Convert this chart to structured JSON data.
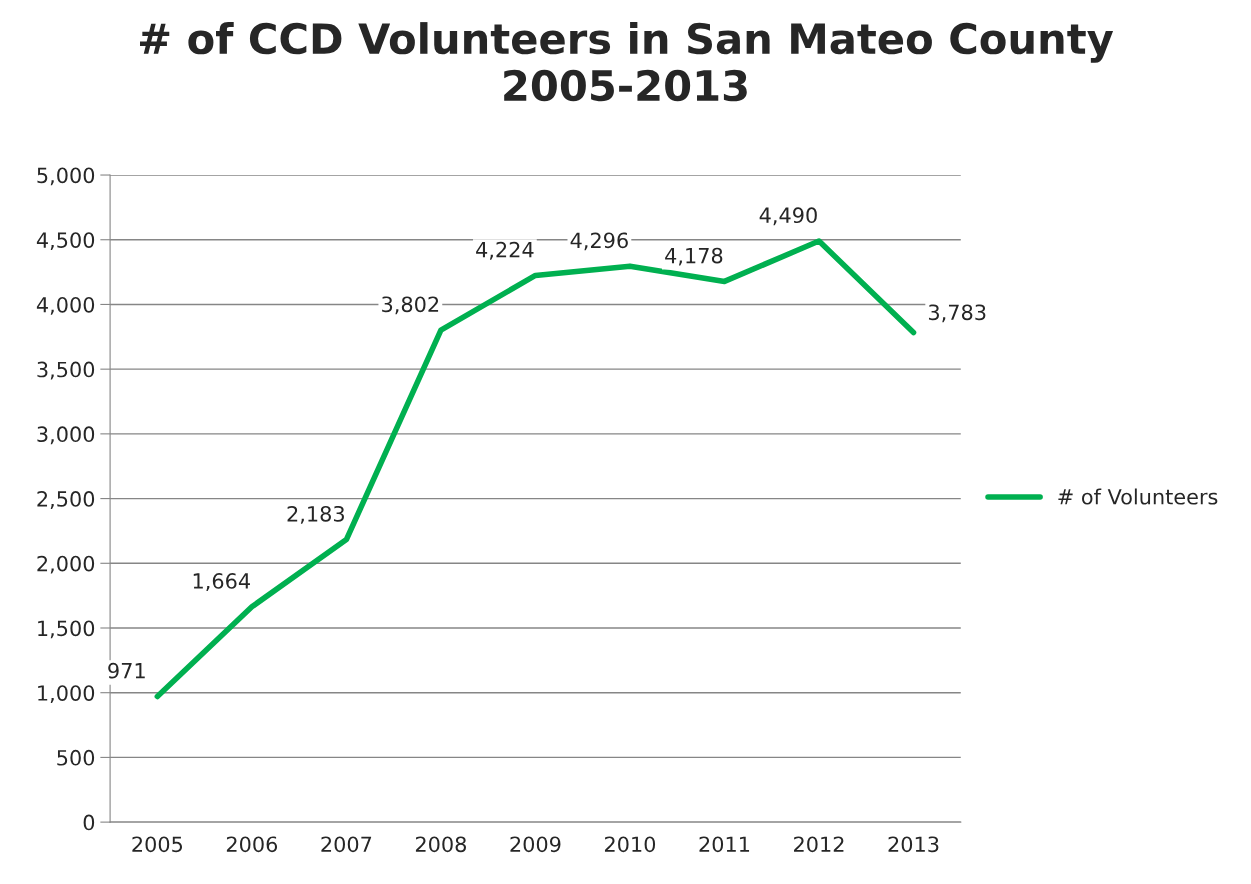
{
  "chart_data": {
    "type": "line",
    "title": "# of CCD Volunteers in San Mateo County\n2005-2013",
    "categories": [
      "2005",
      "2006",
      "2007",
      "2008",
      "2009",
      "2010",
      "2011",
      "2012",
      "2013"
    ],
    "series": [
      {
        "name": "# of Volunteers",
        "color": "#00b050",
        "values": [
          971,
          1664,
          2183,
          3802,
          4224,
          4296,
          4178,
          4490,
          3783
        ],
        "value_labels": [
          "971",
          "1,664",
          "2,183",
          "3,802",
          "4,224",
          "4,296",
          "4,178",
          "4,490",
          "3,783"
        ]
      }
    ],
    "ylim": [
      0,
      5000
    ],
    "yticks": [
      0,
      500,
      {
        "value": 1000,
        "label": "1,000"
      },
      {
        "value": 1500,
        "label": "1,500"
      },
      {
        "value": 2000,
        "label": "2,000"
      },
      {
        "value": 2500,
        "label": "2,500"
      },
      {
        "value": 3000,
        "label": "3,000"
      },
      {
        "value": 3500,
        "label": "3,500"
      },
      {
        "value": 4000,
        "label": "4,000"
      },
      {
        "value": 4500,
        "label": "4,500"
      },
      {
        "value": 5000,
        "label": "5,000"
      }
    ],
    "grid": "y",
    "legend": "right",
    "marker": "none",
    "line_style": "solid"
  }
}
